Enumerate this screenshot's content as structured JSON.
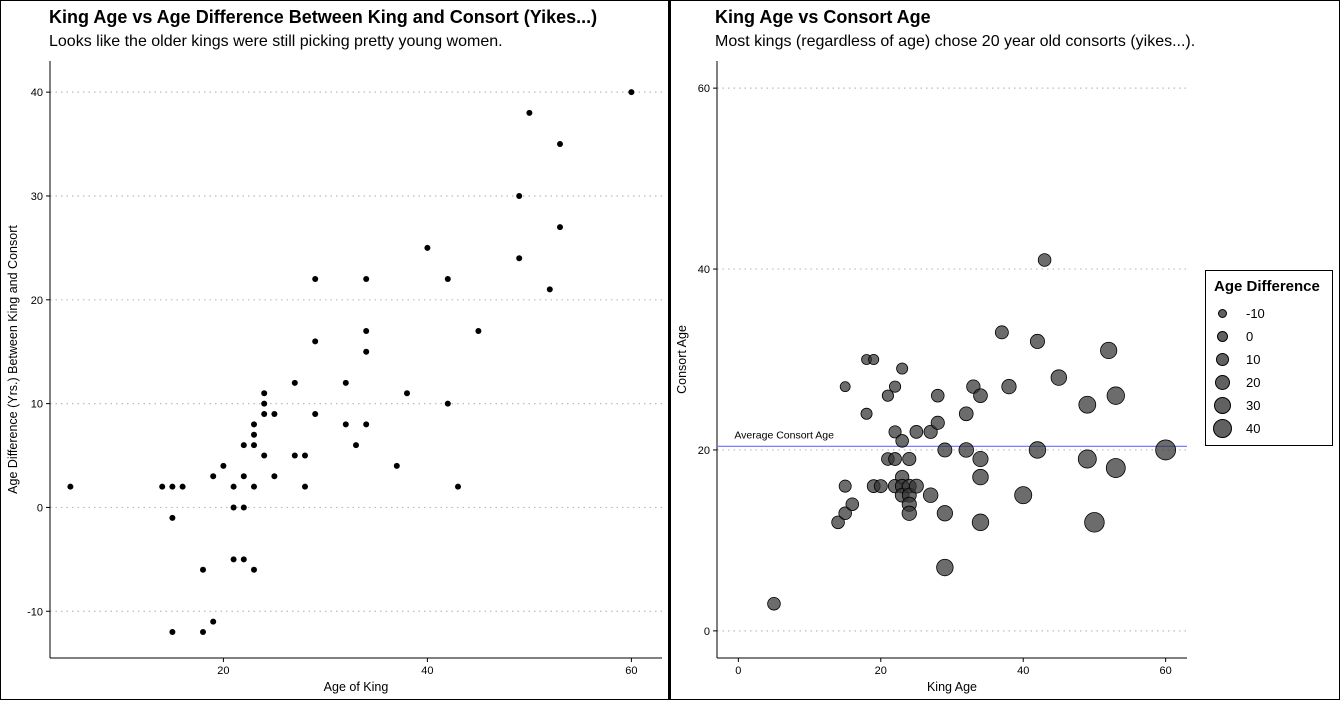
{
  "charts": [
    {
      "title": "King Age vs Age Difference Between King and Consort (Yikes...)",
      "subtitle": "Looks like the older kings were still picking pretty young women."
    },
    {
      "title": "King Age vs Consort Age",
      "subtitle": "Most kings (regardless of age) chose 20 year old consorts (yikes...)."
    }
  ],
  "legend": {
    "title": "Age Difference",
    "items": [
      "-10",
      "0",
      "10",
      "20",
      "30",
      "40"
    ]
  },
  "colors": {
    "point": "#000000",
    "bubble": "#333333",
    "mean_line": "#6b6bff",
    "grid": "#bbbbbb"
  },
  "chart_data": [
    {
      "type": "scatter",
      "title": "King Age vs Age Difference Between King and Consort (Yikes...)",
      "xlabel": "Age of King",
      "ylabel": "Age Difference (Yrs.) Between King and Consort",
      "xlim": [
        3,
        63
      ],
      "ylim": [
        -14.5,
        43
      ],
      "xticks": [
        20,
        40,
        60
      ],
      "yticks": [
        -10,
        0,
        10,
        20,
        30,
        40
      ],
      "grid": "horizontal dotted",
      "points": [
        [
          5,
          2
        ],
        [
          14,
          2
        ],
        [
          15,
          2
        ],
        [
          16,
          2
        ],
        [
          15,
          -1
        ],
        [
          15,
          -12
        ],
        [
          18,
          -12
        ],
        [
          18,
          -6
        ],
        [
          19,
          -11
        ],
        [
          19,
          3
        ],
        [
          20,
          4
        ],
        [
          21,
          2
        ],
        [
          21,
          0
        ],
        [
          21,
          -5
        ],
        [
          22,
          6
        ],
        [
          22,
          3
        ],
        [
          22,
          0
        ],
        [
          22,
          -5
        ],
        [
          23,
          8
        ],
        [
          23,
          7
        ],
        [
          23,
          6
        ],
        [
          23,
          2
        ],
        [
          23,
          -6
        ],
        [
          24,
          11
        ],
        [
          24,
          10
        ],
        [
          24,
          9
        ],
        [
          24,
          5
        ],
        [
          25,
          9
        ],
        [
          25,
          3
        ],
        [
          27,
          12
        ],
        [
          27,
          5
        ],
        [
          28,
          5
        ],
        [
          28,
          2
        ],
        [
          29,
          22
        ],
        [
          29,
          16
        ],
        [
          29,
          9
        ],
        [
          32,
          12
        ],
        [
          32,
          8
        ],
        [
          33,
          6
        ],
        [
          34,
          22
        ],
        [
          34,
          17
        ],
        [
          34,
          15
        ],
        [
          34,
          8
        ],
        [
          37,
          4
        ],
        [
          38,
          11
        ],
        [
          40,
          25
        ],
        [
          42,
          22
        ],
        [
          42,
          10
        ],
        [
          43,
          2
        ],
        [
          45,
          17
        ],
        [
          49,
          30
        ],
        [
          49,
          24
        ],
        [
          50,
          38
        ],
        [
          52,
          21
        ],
        [
          53,
          35
        ],
        [
          53,
          27
        ],
        [
          60,
          40
        ]
      ]
    },
    {
      "type": "scatter",
      "title": "King Age vs Consort Age",
      "xlabel": "King Age",
      "ylabel": "Consort Age",
      "xlim": [
        -3,
        63
      ],
      "ylim": [
        -3,
        63
      ],
      "xticks": [
        0,
        20,
        40,
        60
      ],
      "yticks": [
        0,
        20,
        40,
        60
      ],
      "grid": "horizontal dotted",
      "size_variable": "Age Difference",
      "mean_line": {
        "y": 20.4,
        "label": "Average Consort Age"
      },
      "points": [
        [
          5,
          3
        ],
        [
          14,
          12
        ],
        [
          15,
          13
        ],
        [
          15,
          16
        ],
        [
          15,
          27
        ],
        [
          16,
          14
        ],
        [
          18,
          24
        ],
        [
          18,
          30
        ],
        [
          19,
          30
        ],
        [
          19,
          16
        ],
        [
          20,
          16
        ],
        [
          21,
          26
        ],
        [
          21,
          19
        ],
        [
          22,
          27
        ],
        [
          22,
          22
        ],
        [
          22,
          19
        ],
        [
          22,
          16
        ],
        [
          23,
          29
        ],
        [
          23,
          21
        ],
        [
          23,
          17
        ],
        [
          23,
          16
        ],
        [
          23,
          15
        ],
        [
          24,
          16
        ],
        [
          24,
          15
        ],
        [
          24,
          14
        ],
        [
          24,
          13
        ],
        [
          24,
          19
        ],
        [
          25,
          22
        ],
        [
          25,
          16
        ],
        [
          27,
          22
        ],
        [
          27,
          15
        ],
        [
          28,
          26
        ],
        [
          28,
          23
        ],
        [
          29,
          20
        ],
        [
          29,
          13
        ],
        [
          29,
          7
        ],
        [
          32,
          24
        ],
        [
          32,
          20
        ],
        [
          33,
          27
        ],
        [
          34,
          26
        ],
        [
          34,
          19
        ],
        [
          34,
          17
        ],
        [
          34,
          12
        ],
        [
          37,
          33
        ],
        [
          38,
          27
        ],
        [
          40,
          15
        ],
        [
          42,
          32
        ],
        [
          42,
          20
        ],
        [
          43,
          41
        ],
        [
          45,
          28
        ],
        [
          49,
          25
        ],
        [
          49,
          19
        ],
        [
          50,
          12
        ],
        [
          52,
          31
        ],
        [
          53,
          26
        ],
        [
          53,
          18
        ],
        [
          60,
          20
        ]
      ]
    }
  ]
}
